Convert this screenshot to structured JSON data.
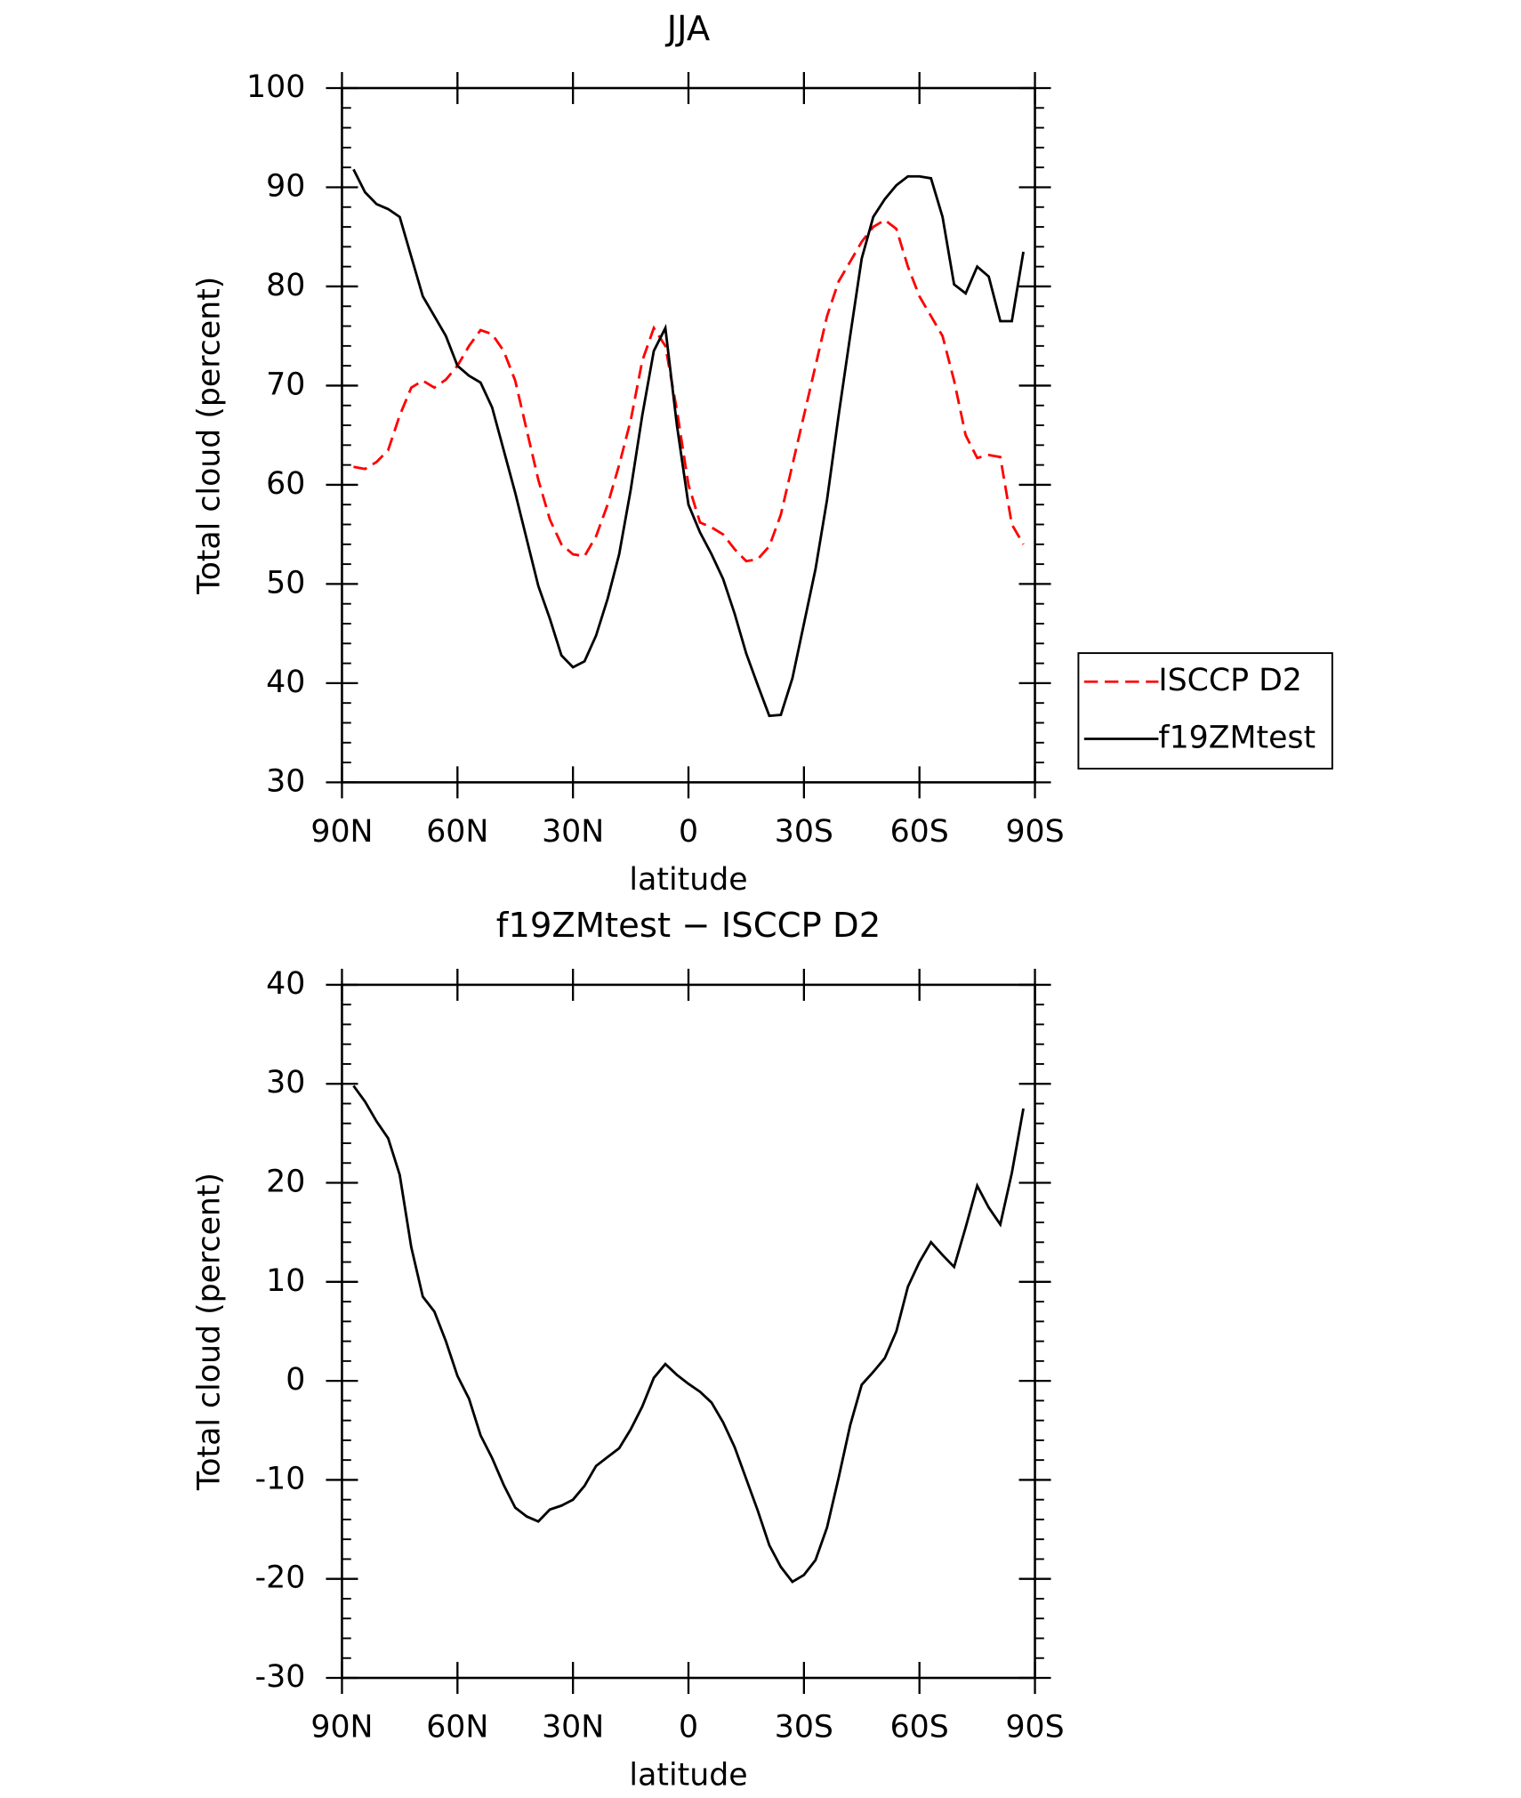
{
  "chart_data": [
    {
      "type": "line",
      "title": "JJA",
      "x_label": "latitude",
      "y_label": "Total cloud (percent)",
      "x": [
        87,
        84,
        81,
        78,
        75,
        72,
        69,
        66,
        63,
        60,
        57,
        54,
        51,
        48,
        45,
        42,
        39,
        36,
        33,
        30,
        27,
        24,
        21,
        18,
        15,
        12,
        9,
        6,
        3,
        0,
        -3,
        -6,
        -9,
        -12,
        -15,
        -18,
        -21,
        -24,
        -27,
        -30,
        -33,
        -36,
        -39,
        -42,
        -45,
        -48,
        -51,
        -54,
        -57,
        -60,
        -63,
        -66,
        -69,
        -72,
        -75,
        -78,
        -81,
        -84,
        -87
      ],
      "xlim": [
        90,
        -90
      ],
      "xticks": [
        {
          "value": 90,
          "label": "90N"
        },
        {
          "value": 60,
          "label": "60N"
        },
        {
          "value": 30,
          "label": "30N"
        },
        0,
        {
          "value": -30,
          "label": "30S"
        },
        {
          "value": -60,
          "label": "60S"
        },
        {
          "value": -90,
          "label": "90S"
        }
      ],
      "ylim": [
        30,
        100
      ],
      "yticks": [
        30,
        40,
        50,
        60,
        70,
        80,
        90,
        100
      ],
      "series": [
        {
          "name": "ISCCP D2",
          "color": "#ff0000",
          "line_style": "dashed",
          "values": [
            61.8,
            61.6,
            62.3,
            63.5,
            67,
            69.8,
            70.5,
            69.8,
            70.6,
            72,
            74,
            75.6,
            75.2,
            73.5,
            70.5,
            65.5,
            60.5,
            56.5,
            54,
            53,
            52.8,
            54.8,
            58,
            62,
            66.5,
            72.5,
            75.8,
            74,
            67.5,
            60,
            56.2,
            55.7,
            55,
            53.5,
            52.3,
            52.5,
            53.8,
            57,
            62,
            67,
            72,
            77,
            80.5,
            82.5,
            84.5,
            86,
            86.7,
            85.8,
            82,
            79,
            77,
            75,
            70.5,
            65,
            62.7,
            63,
            62.8,
            56,
            54
          ]
        },
        {
          "name": "f19ZMtest",
          "color": "#000000",
          "line_style": "solid",
          "values": [
            91.8,
            89.5,
            88.3,
            87.8,
            87,
            83,
            79,
            77,
            75,
            72,
            71,
            70.3,
            67.8,
            63.5,
            59.2,
            54.5,
            49.8,
            46.5,
            42.8,
            41.6,
            42.2,
            44.8,
            48.5,
            53,
            59.5,
            67,
            73.5,
            75.8,
            66,
            58,
            55.2,
            53,
            50.5,
            47,
            43,
            39.8,
            36.7,
            36.8,
            40.5,
            46,
            51.5,
            58.5,
            67,
            75,
            82.8,
            87,
            88.8,
            90.2,
            91.1,
            91.1,
            90.9,
            87,
            80.2,
            79.3,
            82,
            81,
            76.5,
            76.5,
            83.5
          ]
        }
      ]
    },
    {
      "type": "line",
      "title": "f19ZMtest − ISCCP D2",
      "x_label": "latitude",
      "y_label": "Total cloud (percent)",
      "x": [
        87,
        84,
        81,
        78,
        75,
        72,
        69,
        66,
        63,
        60,
        57,
        54,
        51,
        48,
        45,
        42,
        39,
        36,
        33,
        30,
        27,
        24,
        21,
        18,
        15,
        12,
        9,
        6,
        3,
        0,
        -3,
        -6,
        -9,
        -12,
        -15,
        -18,
        -21,
        -24,
        -27,
        -30,
        -33,
        -36,
        -39,
        -42,
        -45,
        -48,
        -51,
        -54,
        -57,
        -60,
        -63,
        -66,
        -69,
        -72,
        -75,
        -78,
        -81,
        -84,
        -87
      ],
      "xlim": [
        90,
        -90
      ],
      "xticks": [
        {
          "value": 90,
          "label": "90N"
        },
        {
          "value": 60,
          "label": "60N"
        },
        {
          "value": 30,
          "label": "30N"
        },
        0,
        {
          "value": -30,
          "label": "30S"
        },
        {
          "value": -60,
          "label": "60S"
        },
        {
          "value": -90,
          "label": "90S"
        }
      ],
      "ylim": [
        -30,
        40
      ],
      "yticks": [
        -30,
        -20,
        -10,
        0,
        10,
        20,
        30,
        40
      ],
      "series": [
        {
          "color": "#000000",
          "line_style": "solid",
          "values": [
            29.8,
            28.2,
            26.2,
            24.5,
            20.8,
            13.5,
            8.5,
            7,
            4,
            0.5,
            -1.8,
            -5.5,
            -7.8,
            -10.5,
            -12.8,
            -13.7,
            -14.2,
            -13,
            -12.6,
            -12,
            -10.6,
            -8.6,
            -7.7,
            -6.8,
            -4.9,
            -2.6,
            0.3,
            1.7,
            0.6,
            -0.3,
            -1.1,
            -2.2,
            -4.2,
            -6.7,
            -9.9,
            -13.1,
            -16.6,
            -18.8,
            -20.3,
            -19.6,
            -18.1,
            -14.8,
            -9.8,
            -4.5,
            -0.4,
            0.9,
            2.3,
            5,
            9.5,
            12,
            14,
            12.7,
            11.5,
            15.5,
            19.7,
            17.5,
            15.8,
            21,
            27.5
          ]
        }
      ]
    }
  ]
}
